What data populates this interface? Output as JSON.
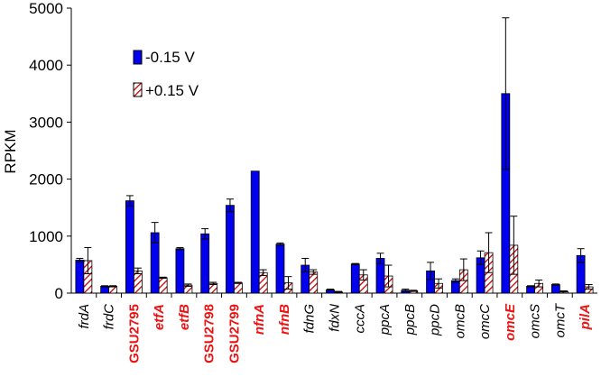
{
  "chart_data": {
    "type": "bar",
    "ylabel": "RPKM",
    "ylim": [
      0,
      5000
    ],
    "yticks": [
      0,
      1000,
      2000,
      3000,
      4000,
      5000
    ],
    "categories": [
      {
        "name": "frdA",
        "italic": true,
        "highlight": false
      },
      {
        "name": "frdC",
        "italic": true,
        "highlight": false
      },
      {
        "name": "GSU2795",
        "italic": false,
        "highlight": true
      },
      {
        "name": "etfA",
        "italic": true,
        "highlight": true
      },
      {
        "name": "etfB",
        "italic": true,
        "highlight": true
      },
      {
        "name": "GSU2798",
        "italic": false,
        "highlight": true
      },
      {
        "name": "GSU2799",
        "italic": false,
        "highlight": true
      },
      {
        "name": "nfnA",
        "italic": true,
        "highlight": true
      },
      {
        "name": "nfnB",
        "italic": true,
        "highlight": true
      },
      {
        "name": "fdnG",
        "italic": true,
        "highlight": false
      },
      {
        "name": "fdxN",
        "italic": true,
        "highlight": false
      },
      {
        "name": "cccA",
        "italic": true,
        "highlight": false
      },
      {
        "name": "ppcA",
        "italic": true,
        "highlight": false
      },
      {
        "name": "ppcB",
        "italic": true,
        "highlight": false
      },
      {
        "name": "ppcD",
        "italic": true,
        "highlight": false
      },
      {
        "name": "omcB",
        "italic": true,
        "highlight": false
      },
      {
        "name": "omcC",
        "italic": true,
        "highlight": false
      },
      {
        "name": "omcE",
        "italic": true,
        "highlight": true
      },
      {
        "name": "omcS",
        "italic": true,
        "highlight": false
      },
      {
        "name": "omcT",
        "italic": true,
        "highlight": false
      },
      {
        "name": "pilA",
        "italic": true,
        "highlight": true
      }
    ],
    "series": [
      {
        "name": "-0.15 V",
        "fill": "solid",
        "color": "#0000ee",
        "values": [
          580,
          120,
          1620,
          1060,
          780,
          1040,
          1540,
          2140,
          860,
          490,
          60,
          510,
          610,
          50,
          390,
          220,
          620,
          3500,
          120,
          150,
          660
        ],
        "errors": [
          30,
          10,
          90,
          180,
          20,
          90,
          110,
          0,
          20,
          120,
          10,
          10,
          90,
          20,
          150,
          30,
          120,
          1330,
          10,
          10,
          120
        ]
      },
      {
        "name": "+0.15 V",
        "fill": "hatched",
        "color": "#cc0000",
        "values": [
          570,
          120,
          390,
          270,
          140,
          170,
          180,
          360,
          180,
          370,
          20,
          320,
          300,
          40,
          170,
          410,
          710,
          840,
          170,
          30,
          110
        ],
        "errors": [
          230,
          10,
          50,
          10,
          20,
          20,
          10,
          50,
          110,
          40,
          10,
          90,
          190,
          10,
          80,
          190,
          350,
          510,
          60,
          10,
          40
        ]
      }
    ],
    "legend_position": "top-left",
    "highlight_color": "#ee1111",
    "grid": false
  }
}
